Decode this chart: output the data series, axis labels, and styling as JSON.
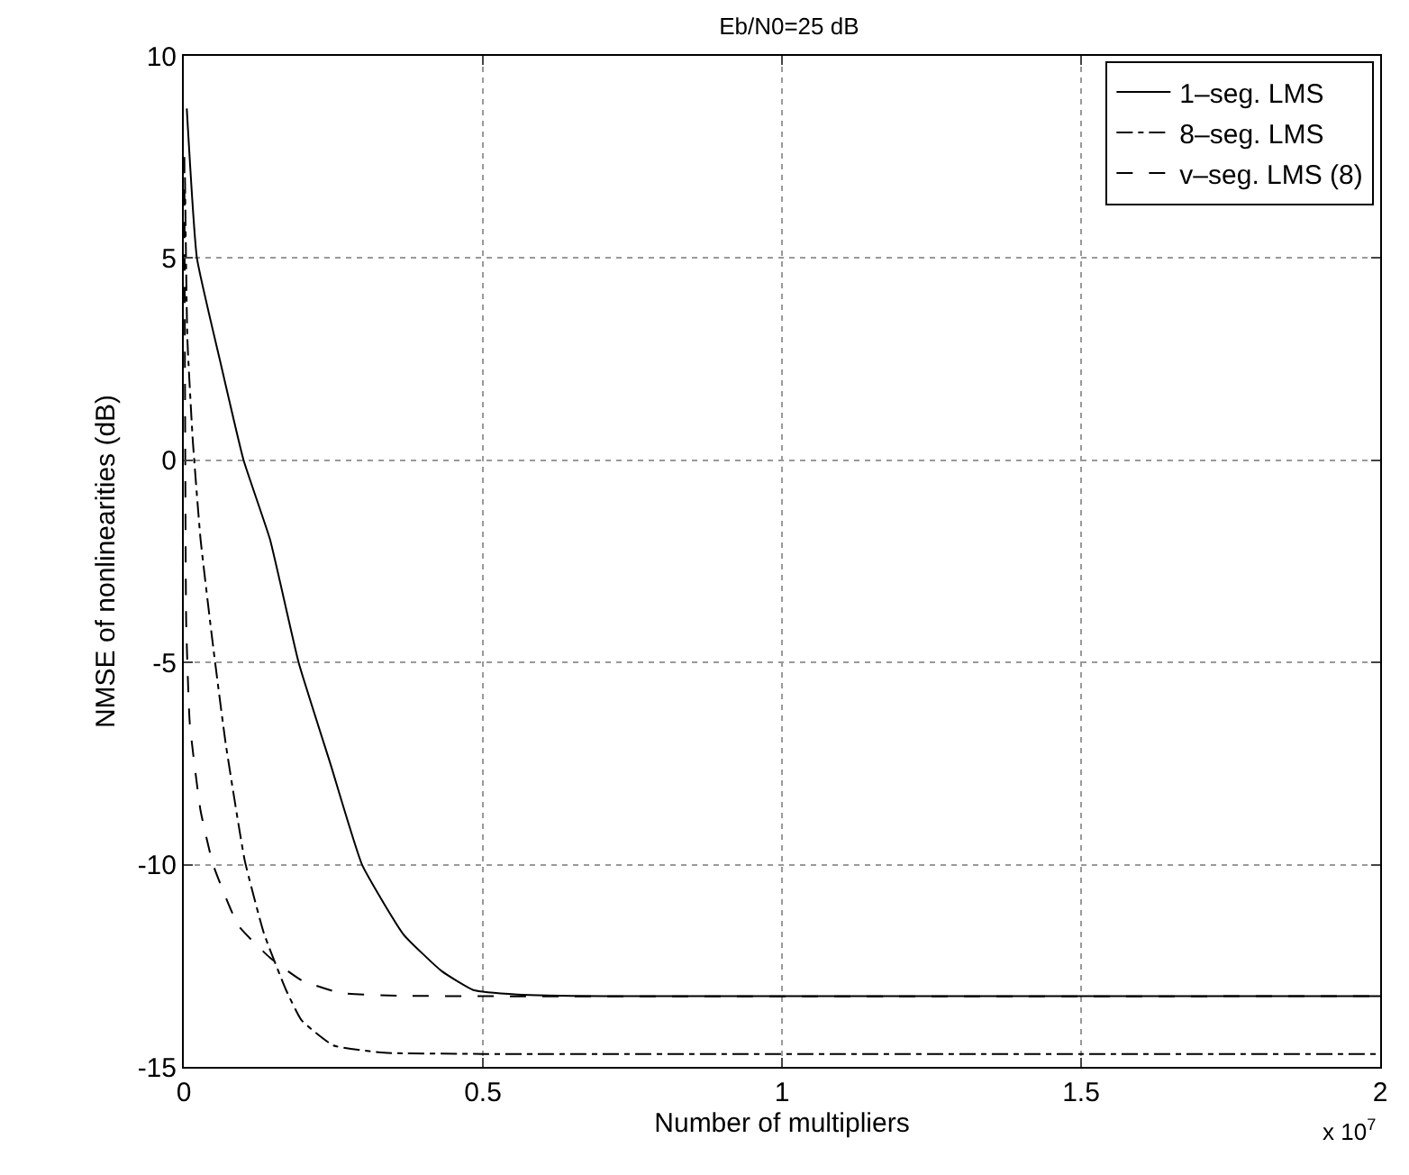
{
  "chart_data": {
    "type": "line",
    "title": "Eb/N0=25 dB",
    "xlabel": "Number of multipliers",
    "ylabel": "NMSE of nonlinearities (dB)",
    "annotations": [
      "x 10$^{7}$"
    ],
    "xlim": [
      0,
      2
    ],
    "xticks": [
      0,
      0.5,
      1,
      1.5,
      2
    ],
    "ylim": [
      -15,
      10
    ],
    "yticks": [
      -15,
      -10,
      -5,
      0,
      5,
      10
    ],
    "grid": true,
    "legend": "top right",
    "marker": "none",
    "series": [
      {
        "name": "1–seg. LMS",
        "color": "#000000",
        "line_style": "solid",
        "x": [
          0.005,
          0.022,
          0.06,
          0.1,
          0.144,
          0.192,
          0.245,
          0.298,
          0.367,
          0.431,
          0.484,
          0.558,
          0.7,
          2
        ],
        "values": [
          8.7,
          5,
          2.5,
          0,
          -1.95,
          -5,
          -7.5,
          -10,
          -11.72,
          -12.63,
          -13.1,
          -13.21,
          -13.25,
          -13.25
        ]
      },
      {
        "name": "8–seg. LMS",
        "color": "#000000",
        "line_style": "dashdot",
        "x": [
          0.002,
          0.006,
          0.015,
          0.028,
          0.049,
          0.07,
          0.102,
          0.134,
          0.171,
          0.197,
          0.25,
          0.335,
          0.5,
          2
        ],
        "values": [
          7.0,
          3.0,
          0.5,
          -1.95,
          -4.6,
          -7.0,
          -9.9,
          -11.7,
          -13.1,
          -13.85,
          -14.47,
          -14.65,
          -14.68,
          -14.68
        ]
      },
      {
        "name": "v–seg. LMS (8)",
        "color": "#000000",
        "line_style": "dashed",
        "x": [
          0.001,
          0.002,
          0.004,
          0.01,
          0.028,
          0.049,
          0.091,
          0.144,
          0.197,
          0.261,
          0.357,
          2
        ],
        "values": [
          7.5,
          2,
          -4,
          -6.5,
          -8.66,
          -10,
          -11.5,
          -12.3,
          -12.86,
          -13.17,
          -13.24,
          -13.25
        ]
      }
    ]
  }
}
